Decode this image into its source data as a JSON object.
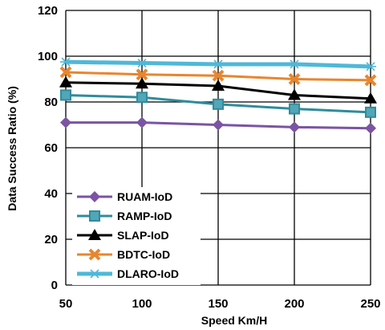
{
  "chart_data": {
    "type": "line",
    "xlabel": "Speed Km/H",
    "ylabel": "Data Success Ratio (%)",
    "x": [
      50,
      100,
      150,
      200,
      250
    ],
    "ylim": [
      0,
      120
    ],
    "yticks": [
      0,
      20,
      40,
      60,
      80,
      100,
      120
    ],
    "grid": true,
    "legend_position": "bottom-left",
    "series": [
      {
        "name": "RUAM-IoD",
        "values": [
          71,
          71,
          70,
          69,
          68.5
        ],
        "color": "#7b54a3",
        "marker": "diamond"
      },
      {
        "name": "RAMP-IoD",
        "values": [
          83,
          82,
          79,
          77,
          75.5
        ],
        "color": "#2f8c9b",
        "marker": "square"
      },
      {
        "name": "SLAP-IoD",
        "values": [
          88.5,
          88,
          87,
          83,
          81.5
        ],
        "color": "#000000",
        "marker": "triangle"
      },
      {
        "name": "BDTC-IoD",
        "values": [
          93,
          92,
          91.5,
          90,
          89.5
        ],
        "color": "#e8862e",
        "marker": "x"
      },
      {
        "name": "DLARO-IoD",
        "values": [
          97.5,
          97,
          96.5,
          96.5,
          95.5
        ],
        "color": "#4fb8d8",
        "marker": "star"
      }
    ]
  }
}
